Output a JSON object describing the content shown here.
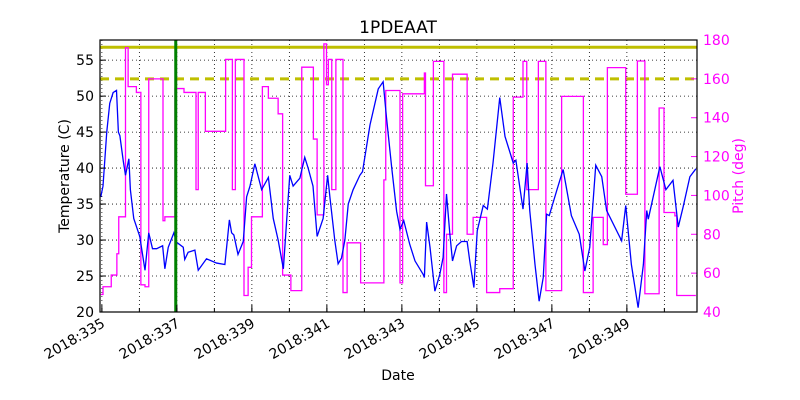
{
  "chart_data": {
    "type": "line",
    "title": "1PDEAAT",
    "xlabel": "Date",
    "ylabel": "Temperature (C)",
    "y2label": "Pitch (deg)",
    "xlim": [
      334.95,
      350.87
    ],
    "ylim": [
      20,
      57.8
    ],
    "y2lim": [
      40,
      180
    ],
    "xticks": [
      335,
      337,
      339,
      341,
      343,
      345,
      347,
      349
    ],
    "xtick_labels": [
      "2018:335",
      "2018:337",
      "2018:339",
      "2018:341",
      "2018:343",
      "2018:345",
      "2018:347",
      "2018:349"
    ],
    "yticks": [
      20,
      25,
      30,
      35,
      40,
      45,
      50,
      55
    ],
    "y2ticks": [
      40,
      60,
      80,
      100,
      120,
      140,
      160,
      180
    ],
    "grid": true,
    "colors": {
      "temperature": "#0000ff",
      "pitch": "#ff00ff",
      "limits": "#bfbf00",
      "marker": "#008000",
      "y2axis": "#ff00ff"
    },
    "limits": [
      {
        "value": 56.8,
        "style": "solid"
      },
      {
        "value": 52.4,
        "style": "dashed"
      }
    ],
    "vertical_marker": 336.97,
    "series": [
      {
        "axis": "left",
        "style": "line",
        "x": [
          334.97,
          335.03,
          335.13,
          335.21,
          335.3,
          335.39,
          335.44,
          335.48,
          335.57,
          335.63,
          335.72,
          335.76,
          335.85,
          336.01,
          336.15,
          336.25,
          336.35,
          336.46,
          336.62,
          336.68,
          336.77,
          336.92,
          336.99,
          337.17,
          337.21,
          337.3,
          337.48,
          337.57,
          337.79,
          338.06,
          338.28,
          338.4,
          338.46,
          338.52,
          338.63,
          338.77,
          338.86,
          338.95,
          339.08,
          339.26,
          339.44,
          339.57,
          339.7,
          339.84,
          340.01,
          340.1,
          340.28,
          340.41,
          340.5,
          340.63,
          340.74,
          340.9,
          341.02,
          341.08,
          341.21,
          341.3,
          341.39,
          341.48,
          341.57,
          341.7,
          341.88,
          341.95,
          342.15,
          342.37,
          342.5,
          342.59,
          342.73,
          342.86,
          342.95,
          343.05,
          343.21,
          343.35,
          343.57,
          343.6,
          343.66,
          343.75,
          343.88,
          344.01,
          344.1,
          344.19,
          344.28,
          344.35,
          344.46,
          344.59,
          344.74,
          344.81,
          344.92,
          345.01,
          345.17,
          345.28,
          345.43,
          345.61,
          345.75,
          345.97,
          346.04,
          346.23,
          346.34,
          346.41,
          346.55,
          346.66,
          346.77,
          346.86,
          346.93,
          347.13,
          347.3,
          347.52,
          347.73,
          347.88,
          348.01,
          348.17,
          348.33,
          348.46,
          348.86,
          348.97,
          349.12,
          349.3,
          349.44,
          349.53,
          349.57,
          349.88,
          350.04,
          350.23,
          350.37,
          350.5,
          350.68,
          350.84
        ],
        "y": [
          36,
          37.5,
          45,
          49,
          50.5,
          50.8,
          45,
          44.5,
          41,
          39,
          41.3,
          37,
          33,
          30.5,
          25.8,
          31,
          28.8,
          28.8,
          29.2,
          26,
          29,
          31,
          29.7,
          29,
          27.3,
          28.3,
          28.6,
          25.8,
          27.4,
          26.8,
          26.6,
          32.8,
          31,
          30.7,
          28,
          29.8,
          36,
          37.5,
          40.6,
          37,
          38.7,
          33,
          30,
          26,
          39,
          37.5,
          38.6,
          41.5,
          40,
          37.5,
          30.5,
          33,
          39,
          36,
          30,
          26.7,
          27.5,
          30,
          35,
          37,
          39,
          39.5,
          46,
          51,
          52,
          47,
          40,
          34,
          31.5,
          32.7,
          29.4,
          27.1,
          25.2,
          24.8,
          32.5,
          29,
          22.9,
          25.2,
          27.6,
          36.4,
          30.8,
          27.1,
          29.2,
          29.8,
          29.8,
          27.1,
          23.4,
          31.3,
          34.8,
          34.3,
          40.7,
          49.8,
          44.4,
          40.7,
          41.1,
          34.3,
          40.7,
          34.1,
          26.6,
          21.5,
          24.8,
          33.6,
          33.4,
          36.9,
          39.8,
          33.4,
          30.8,
          25.7,
          29,
          40.4,
          38.8,
          34.1,
          29.9,
          34.8,
          26.6,
          20.6,
          26.6,
          34.1,
          32.9,
          40.2,
          37,
          38.3,
          31.8,
          34.6,
          38.8,
          39.9
        ]
      },
      {
        "axis": "right",
        "style": "steps",
        "x": [
          334.97,
          335.03,
          335.25,
          335.4,
          335.45,
          335.63,
          335.7,
          335.92,
          336.04,
          336.15,
          336.25,
          336.63,
          336.68,
          336.95,
          337.19,
          337.51,
          337.57,
          337.76,
          338.3,
          338.48,
          338.56,
          338.79,
          338.9,
          338.99,
          339.28,
          339.44,
          339.7,
          339.82,
          340.04,
          340.33,
          340.64,
          340.74,
          340.92,
          340.99,
          341.04,
          341.13,
          341.24,
          341.43,
          341.54,
          341.9,
          342.52,
          342.57,
          342.95,
          343.02,
          343.6,
          343.63,
          343.68,
          343.84,
          344.12,
          344.19,
          344.35,
          344.74,
          344.9,
          345.26,
          345.61,
          345.97,
          346.23,
          346.33,
          346.64,
          346.84,
          347.26,
          347.84,
          348.1,
          348.37,
          348.48,
          348.97,
          349.28,
          349.48,
          349.86,
          349.99,
          350.28,
          350.33,
          350.84
        ],
        "y": [
          49,
          53,
          59,
          70,
          89,
          176,
          156,
          153,
          54,
          53,
          160,
          87,
          89,
          155,
          153,
          103,
          153,
          133,
          170,
          103,
          170,
          48.5,
          63,
          89,
          156,
          150,
          142,
          59,
          51,
          166,
          129,
          90,
          178,
          157,
          170,
          103,
          170,
          50,
          75.6,
          55,
          108,
          154,
          55,
          152.3,
          163,
          105,
          105,
          169,
          50,
          80,
          162.4,
          80,
          88.7,
          50,
          52,
          150.6,
          169,
          103,
          169,
          51,
          151,
          50,
          88.7,
          74.7,
          165.8,
          100.6,
          169.2,
          49.4,
          145,
          91.2,
          89.5,
          48.5,
          48.5
        ]
      }
    ]
  }
}
